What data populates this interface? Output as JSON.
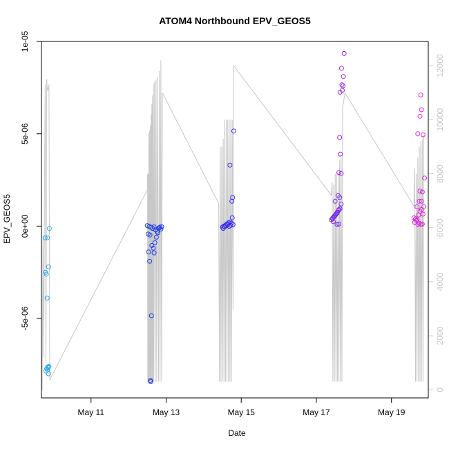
{
  "chart_data": {
    "type": "scatter",
    "title": "ATOM4 Northbound EPV_GEOS5",
    "xlabel": "Date",
    "ylabel": "EPV_GEOS5",
    "x_ticks": [
      {
        "day": 11,
        "label": "May 11"
      },
      {
        "day": 13,
        "label": "May 13"
      },
      {
        "day": 15,
        "label": "May 15"
      },
      {
        "day": 17,
        "label": "May 17"
      },
      {
        "day": 19,
        "label": "May 19"
      }
    ],
    "xlim": [
      9.68,
      19.98
    ],
    "ylim": [
      -9.3e-06,
      1e-05
    ],
    "y_ticks": [
      {
        "value": 1e-05,
        "label": "1e-05"
      },
      {
        "value": 5e-06,
        "label": "5e-06"
      },
      {
        "value": 0,
        "label": "0e+00"
      },
      {
        "value": -5e-06,
        "label": "-5e-06"
      }
    ],
    "y2lim": [
      -300,
      12900
    ],
    "y2_ticks": [
      {
        "value": 0,
        "label": "0"
      },
      {
        "value": 2000,
        "label": "2000"
      },
      {
        "value": 4000,
        "label": "4000"
      },
      {
        "value": 6000,
        "label": "6000"
      },
      {
        "value": 8000,
        "label": "8000"
      },
      {
        "value": 10000,
        "label": "10000"
      },
      {
        "value": 12000,
        "label": "12000"
      }
    ],
    "altitude_color": "#c8c8c8",
    "point_series": [
      {
        "color": "#2aa8f0",
        "points": [
          [
            9.78,
            -6.3e-07
          ],
          [
            9.84,
            -6.3e-07
          ],
          [
            9.79,
            -2.5e-06
          ],
          [
            9.81,
            -2.6e-06
          ],
          [
            9.87,
            -2.2e-06
          ],
          [
            9.83,
            -3.9e-06
          ],
          [
            9.89,
            -1.3e-07
          ],
          [
            9.82,
            -7.72e-06
          ],
          [
            9.86,
            -7.67e-06
          ],
          [
            9.88,
            -7.6e-06
          ],
          [
            9.8,
            -7.85e-06
          ],
          [
            9.84,
            -7.78e-06
          ],
          [
            9.87,
            -8e-06
          ],
          [
            9.85,
            -7.62e-06
          ]
        ]
      },
      {
        "color": "#1f3cf0",
        "points": [
          [
            12.5,
            3e-08
          ],
          [
            12.55,
            -2e-08
          ],
          [
            12.6,
            -6e-08
          ],
          [
            12.64,
            -1.2e-07
          ],
          [
            12.68,
            -4e-08
          ],
          [
            12.72,
            -2.1e-07
          ],
          [
            12.76,
            -2.8e-07
          ],
          [
            12.8,
            -1.1e-07
          ],
          [
            12.84,
            -5e-08
          ],
          [
            12.88,
            -3e-08
          ],
          [
            12.52,
            -4.3e-07
          ],
          [
            12.57,
            -4.8e-07
          ],
          [
            12.62,
            -1.05e-06
          ],
          [
            12.66,
            -1.2e-06
          ],
          [
            12.7,
            -9e-07
          ],
          [
            12.74,
            -6e-07
          ],
          [
            12.78,
            -3.6e-07
          ],
          [
            12.53,
            -1.4e-06
          ],
          [
            12.68,
            -1.45e-06
          ],
          [
            12.56,
            -1.9e-06
          ],
          [
            12.61,
            -4.85e-06
          ],
          [
            12.58,
            -8.35e-06
          ],
          [
            12.59,
            -8.42e-06
          ],
          [
            12.82,
            -9e-08
          ],
          [
            12.86,
            -1.6e-07
          ]
        ]
      },
      {
        "color": "#3a2cf0",
        "points": [
          [
            14.5,
            -5e-08
          ],
          [
            14.54,
            0
          ],
          [
            14.58,
            5e-08
          ],
          [
            14.62,
            1.2e-07
          ],
          [
            14.66,
            1.8e-07
          ],
          [
            14.7,
            2.2e-07
          ],
          [
            14.74,
            1.6e-07
          ],
          [
            14.78,
            9e-08
          ],
          [
            14.52,
            -1.2e-07
          ],
          [
            14.56,
            -3e-08
          ],
          [
            14.6,
            2e-08
          ],
          [
            14.64,
            8e-08
          ],
          [
            14.68,
            -1e-08
          ],
          [
            14.72,
            4e-08
          ],
          [
            14.76,
            4.5e-07
          ],
          [
            14.7,
            3.3e-06
          ],
          [
            14.75,
            1.35e-06
          ],
          [
            14.77,
            1.55e-06
          ],
          [
            14.8,
            5.15e-06
          ]
        ]
      },
      {
        "color": "#7a2ae8",
        "points": [
          [
            17.4,
            3.5e-07
          ],
          [
            17.44,
            4.5e-07
          ],
          [
            17.48,
            5.5e-07
          ],
          [
            17.52,
            6.5e-07
          ],
          [
            17.56,
            7.5e-07
          ],
          [
            17.6,
            9e-07
          ],
          [
            17.43,
            4e-07
          ],
          [
            17.47,
            5e-07
          ],
          [
            17.51,
            6e-07
          ],
          [
            17.55,
            7e-07
          ],
          [
            17.59,
            8.5e-07
          ],
          [
            17.63,
            9.5e-07
          ],
          [
            17.5,
            1.35e-06
          ],
          [
            17.58,
            1.65e-06
          ],
          [
            17.62,
            1.55e-06
          ],
          [
            17.55,
            1e-07
          ],
          [
            17.6,
            1.1e-07
          ],
          [
            17.45,
            2.5e-07
          ],
          [
            17.66,
            1.2e-06
          ]
        ]
      },
      {
        "color": "#9a26e0",
        "points": [
          [
            17.6,
            2.9e-06
          ],
          [
            17.66,
            2.85e-06
          ],
          [
            17.64,
            3.9e-06
          ],
          [
            17.62,
            4.8e-06
          ],
          [
            17.63,
            7.25e-06
          ],
          [
            17.69,
            7.35e-06
          ],
          [
            17.71,
            7.6e-06
          ],
          [
            17.68,
            7.65e-06
          ],
          [
            17.72,
            8.1e-06
          ],
          [
            17.67,
            8.55e-06
          ],
          [
            17.74,
            9.35e-06
          ]
        ]
      },
      {
        "color": "#d826d8",
        "points": [
          [
            19.6,
            4.5e-07
          ],
          [
            19.64,
            4e-07
          ],
          [
            19.68,
            3.5e-07
          ],
          [
            19.72,
            6e-07
          ],
          [
            19.76,
            8e-07
          ],
          [
            19.8,
            9e-07
          ],
          [
            19.62,
            2e-07
          ],
          [
            19.66,
            3e-07
          ],
          [
            19.7,
            1e-07
          ],
          [
            19.74,
            1.5e-07
          ],
          [
            19.78,
            1e-07
          ],
          [
            19.82,
            1.1e-07
          ],
          [
            19.84,
            6.5e-07
          ],
          [
            19.68,
            1.05e-06
          ],
          [
            19.74,
            1.35e-06
          ],
          [
            19.8,
            1.35e-06
          ],
          [
            19.86,
            1.05e-06
          ],
          [
            19.76,
            1.9e-06
          ],
          [
            19.82,
            1.85e-06
          ],
          [
            19.88,
            2.6e-06
          ]
        ]
      },
      {
        "color": "#e826c8",
        "points": [
          [
            19.7,
            5e-06
          ],
          [
            19.84,
            4.95e-06
          ],
          [
            19.76,
            5.95e-06
          ],
          [
            19.8,
            6.3e-06
          ],
          [
            19.78,
            7.1e-06
          ]
        ]
      }
    ],
    "altitude_trace": [
      [
        9.7,
        0
      ],
      [
        9.72,
        5700
      ],
      [
        9.74,
        1200
      ],
      [
        9.76,
        7400
      ],
      [
        9.78,
        11300
      ],
      [
        9.8,
        1000
      ],
      [
        9.82,
        11500
      ],
      [
        9.84,
        11100
      ],
      [
        9.86,
        11100
      ],
      [
        9.88,
        11300
      ],
      [
        9.9,
        350
      ],
      [
        9.92,
        420
      ],
      [
        12.5,
        7400
      ],
      [
        12.505,
        8000
      ],
      [
        12.51,
        300
      ],
      [
        12.52,
        8000
      ],
      [
        12.53,
        300
      ],
      [
        12.54,
        9500
      ],
      [
        12.55,
        300
      ],
      [
        12.56,
        9600
      ],
      [
        12.57,
        300
      ],
      [
        12.58,
        9800
      ],
      [
        12.59,
        300
      ],
      [
        12.6,
        10200
      ],
      [
        12.61,
        300
      ],
      [
        12.62,
        10600
      ],
      [
        12.63,
        300
      ],
      [
        12.64,
        10900
      ],
      [
        12.65,
        300
      ],
      [
        12.66,
        11300
      ],
      [
        12.67,
        300
      ],
      [
        12.69,
        11400
      ],
      [
        12.71,
        300
      ],
      [
        12.73,
        11500
      ],
      [
        12.75,
        300
      ],
      [
        12.77,
        11600
      ],
      [
        12.8,
        300
      ],
      [
        12.82,
        11800
      ],
      [
        12.84,
        300
      ],
      [
        12.86,
        12200
      ],
      [
        12.88,
        300
      ],
      [
        12.9,
        11000
      ],
      [
        14.4,
        6900
      ],
      [
        14.42,
        300
      ],
      [
        14.44,
        9000
      ],
      [
        14.46,
        300
      ],
      [
        14.48,
        9000
      ],
      [
        14.5,
        300
      ],
      [
        14.52,
        9300
      ],
      [
        14.54,
        300
      ],
      [
        14.56,
        10000
      ],
      [
        14.58,
        300
      ],
      [
        14.6,
        10000
      ],
      [
        14.62,
        300
      ],
      [
        14.64,
        10000
      ],
      [
        14.66,
        300
      ],
      [
        14.68,
        10000
      ],
      [
        14.7,
        300
      ],
      [
        14.72,
        10000
      ],
      [
        14.74,
        300
      ],
      [
        14.76,
        10000
      ],
      [
        14.78,
        3000
      ],
      [
        14.8,
        12000
      ],
      [
        17.4,
        7200
      ],
      [
        17.42,
        7700
      ],
      [
        17.44,
        300
      ],
      [
        17.46,
        7600
      ],
      [
        17.48,
        300
      ],
      [
        17.5,
        8000
      ],
      [
        17.52,
        300
      ],
      [
        17.54,
        8000
      ],
      [
        17.56,
        300
      ],
      [
        17.58,
        8000
      ],
      [
        17.6,
        300
      ],
      [
        17.62,
        8500
      ],
      [
        17.64,
        300
      ],
      [
        17.66,
        8600
      ],
      [
        17.68,
        300
      ],
      [
        17.7,
        10500
      ],
      [
        17.72,
        10600
      ],
      [
        17.74,
        10800
      ],
      [
        17.76,
        11000
      ],
      [
        19.6,
        6800
      ],
      [
        19.62,
        8200
      ],
      [
        19.64,
        300
      ],
      [
        19.66,
        8000
      ],
      [
        19.68,
        300
      ],
      [
        19.7,
        8600
      ],
      [
        19.72,
        300
      ],
      [
        19.74,
        9000
      ],
      [
        19.76,
        300
      ],
      [
        19.78,
        9200
      ],
      [
        19.8,
        300
      ],
      [
        19.82,
        9300
      ],
      [
        19.84,
        300
      ],
      [
        19.86,
        9400
      ],
      [
        19.88,
        9400
      ]
    ]
  }
}
